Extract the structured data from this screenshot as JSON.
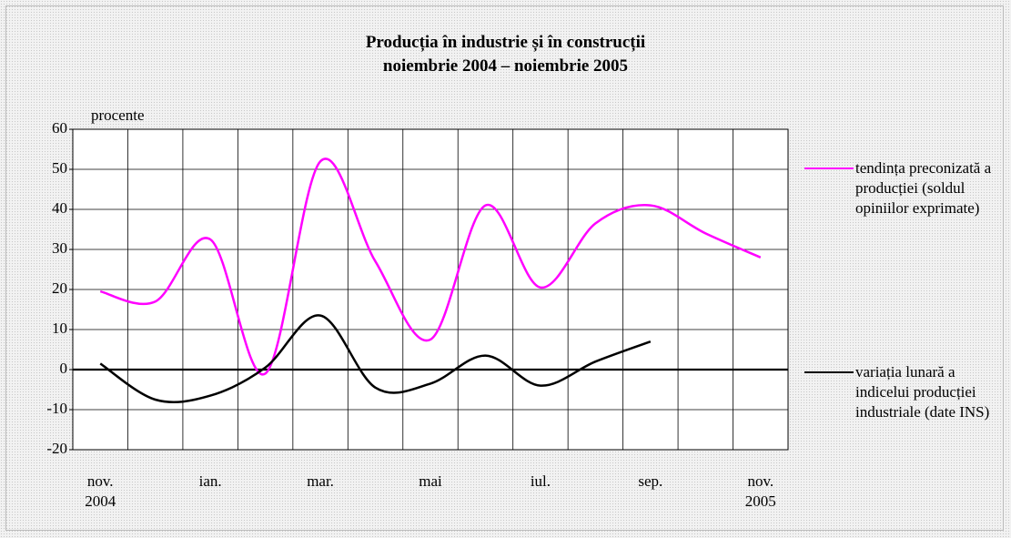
{
  "chart_data": {
    "type": "line",
    "title": "Producția în industrie și în construcții\nnoiembrie 2004 – noiembrie 2005",
    "y_label": "procente",
    "categories": [
      "nov.\n2004",
      null,
      "ian.",
      null,
      "mar.",
      null,
      "mai",
      null,
      "iul.",
      null,
      "sep.",
      null,
      "nov.\n2005"
    ],
    "series": [
      {
        "name": "tendința preconizată a producției (soldul opiniilor exprimate)",
        "color": "#ff00ff",
        "values": [
          19.5,
          17,
          32.5,
          -1,
          52,
          27,
          7.5,
          41,
          20.5,
          36.5,
          41,
          34,
          28
        ]
      },
      {
        "name": "variația lunară a indicelui producției industriale (date INS)",
        "color": "#000000",
        "values": [
          1.5,
          -7.5,
          -6.5,
          0.5,
          13.5,
          -4.5,
          -3.5,
          3.5,
          -4,
          2,
          7,
          null,
          null
        ]
      }
    ],
    "ylim": [
      -20,
      60
    ],
    "yticks": [
      -20,
      -10,
      0,
      10,
      20,
      30,
      40,
      50,
      60
    ],
    "grid": true,
    "legend": "right"
  }
}
